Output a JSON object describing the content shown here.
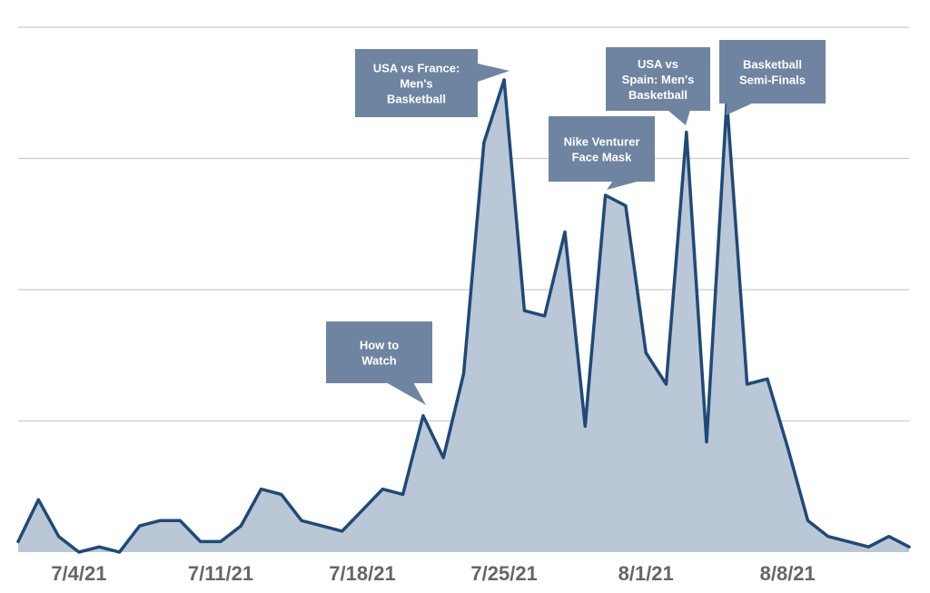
{
  "chart_data": {
    "type": "area",
    "title": "",
    "xlabel": "",
    "ylabel": "",
    "x_start": "7/1/21",
    "x_end": "8/14/21",
    "ylim": [
      0,
      100
    ],
    "grid": true,
    "gridlines": [
      0,
      25,
      50,
      75,
      100
    ],
    "colors": {
      "line": "#1f4a78",
      "fill": "#bac7d6",
      "grid": "#cccccc",
      "callout": "#6e84a1",
      "tick_text": "#666666"
    },
    "x_tick_labels": [
      "7/4/21",
      "7/11/21",
      "7/18/21",
      "7/25/21",
      "8/1/21",
      "8/8/21"
    ],
    "x_tick_dates": [
      "7/4/21",
      "7/11/21",
      "7/18/21",
      "7/25/21",
      "8/1/21",
      "8/8/21"
    ],
    "series": [
      {
        "x": [
          "7/1/21",
          "7/2/21",
          "7/3/21",
          "7/4/21",
          "7/5/21",
          "7/6/21",
          "7/7/21",
          "7/8/21",
          "7/9/21",
          "7/10/21",
          "7/11/21",
          "7/12/21",
          "7/13/21",
          "7/14/21",
          "7/15/21",
          "7/16/21",
          "7/17/21",
          "7/18/21",
          "7/19/21",
          "7/20/21",
          "7/21/21",
          "7/22/21",
          "7/23/21",
          "7/24/21",
          "7/25/21",
          "7/26/21",
          "7/27/21",
          "7/28/21",
          "7/29/21",
          "7/30/21",
          "7/31/21",
          "8/1/21",
          "8/2/21",
          "8/3/21",
          "8/4/21",
          "8/5/21",
          "8/6/21",
          "8/7/21",
          "8/8/21",
          "8/9/21",
          "8/10/21",
          "8/11/21",
          "8/12/21",
          "8/13/21",
          "8/14/21"
        ],
        "values": [
          2,
          10,
          3,
          0,
          1,
          0,
          5,
          6,
          6,
          2,
          2,
          5,
          12,
          11,
          6,
          5,
          4,
          8,
          12,
          11,
          26,
          18,
          34,
          78,
          90,
          46,
          45,
          61,
          24,
          68,
          66,
          38,
          32,
          80,
          21,
          86,
          32,
          33,
          20,
          6,
          3,
          2,
          1,
          3,
          1
        ]
      }
    ],
    "annotations": [
      {
        "text_lines": [
          "How to",
          "Watch"
        ],
        "date": "7/21/21"
      },
      {
        "text_lines": [
          "USA vs France:",
          "Men's",
          "Basketball"
        ],
        "date": "7/25/21"
      },
      {
        "text_lines": [
          "Nike Venturer",
          "Face Mask"
        ],
        "date": "7/30/21"
      },
      {
        "text_lines": [
          "USA vs",
          "Spain: Men's",
          "Basketball"
        ],
        "date": "8/3/21"
      },
      {
        "text_lines": [
          "Basketball",
          "Semi-Finals"
        ],
        "date": "8/5/21"
      }
    ]
  }
}
